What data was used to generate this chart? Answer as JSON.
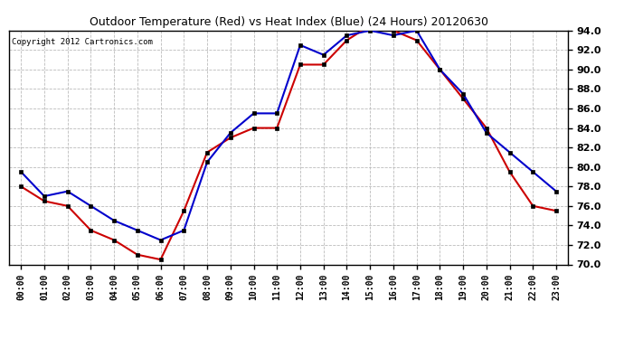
{
  "title": "Outdoor Temperature (Red) vs Heat Index (Blue) (24 Hours) 20120630",
  "copyright": "Copyright 2012 Cartronics.com",
  "hours": [
    "00:00",
    "01:00",
    "02:00",
    "03:00",
    "04:00",
    "05:00",
    "06:00",
    "07:00",
    "08:00",
    "09:00",
    "10:00",
    "11:00",
    "12:00",
    "13:00",
    "14:00",
    "15:00",
    "16:00",
    "17:00",
    "18:00",
    "19:00",
    "20:00",
    "21:00",
    "22:00",
    "23:00"
  ],
  "temp_red": [
    78.0,
    76.5,
    76.0,
    73.5,
    72.5,
    71.0,
    70.5,
    75.5,
    81.5,
    83.0,
    84.0,
    84.0,
    90.5,
    90.5,
    93.0,
    94.5,
    94.0,
    93.0,
    90.0,
    87.0,
    84.0,
    79.5,
    76.0,
    75.5
  ],
  "heat_blue": [
    79.5,
    77.0,
    77.5,
    76.0,
    74.5,
    73.5,
    72.5,
    73.5,
    80.5,
    83.5,
    85.5,
    85.5,
    92.5,
    91.5,
    93.5,
    94.0,
    93.5,
    94.0,
    90.0,
    87.5,
    83.5,
    81.5,
    79.5,
    77.5
  ],
  "ylim": [
    70.0,
    94.0
  ],
  "yticks": [
    70.0,
    72.0,
    74.0,
    76.0,
    78.0,
    80.0,
    82.0,
    84.0,
    86.0,
    88.0,
    90.0,
    92.0,
    94.0
  ],
  "red_color": "#cc0000",
  "blue_color": "#0000cc",
  "grid_color": "#bbbbbb",
  "bg_color": "#ffffff",
  "plot_bg": "#ffffff"
}
